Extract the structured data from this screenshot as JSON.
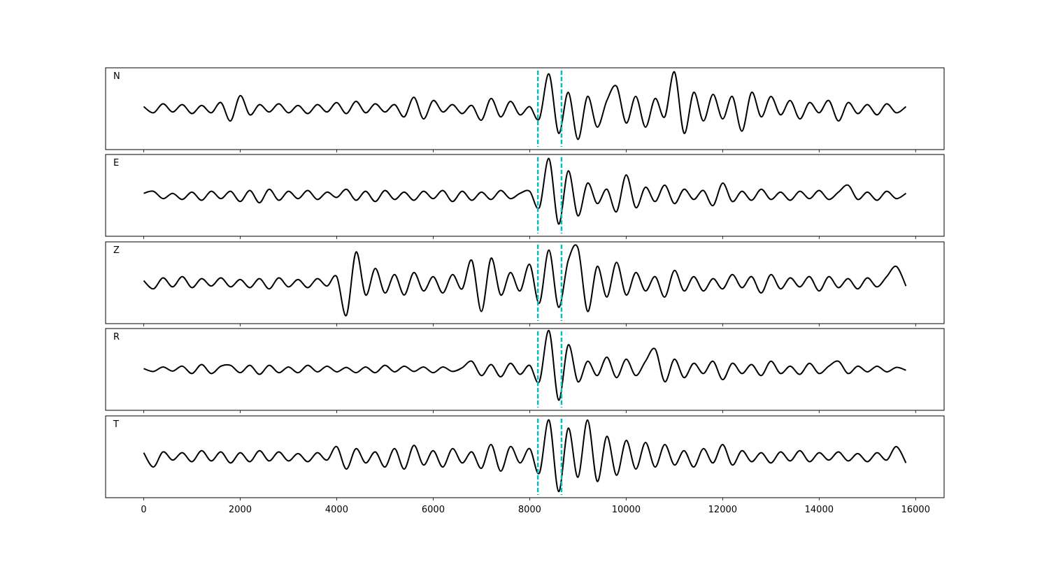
{
  "chart_data": {
    "type": "line",
    "subplots": true,
    "x": [
      0,
      200,
      400,
      600,
      800,
      1000,
      1200,
      1400,
      1600,
      1800,
      2000,
      2200,
      2400,
      2600,
      2800,
      3000,
      3200,
      3400,
      3600,
      3800,
      4000,
      4200,
      4400,
      4600,
      4800,
      5000,
      5200,
      5400,
      5600,
      5800,
      6000,
      6200,
      6400,
      6600,
      6800,
      7000,
      7200,
      7400,
      7600,
      7800,
      8000,
      8200,
      8400,
      8600,
      8800,
      9000,
      9200,
      9400,
      9600,
      9800,
      10000,
      10200,
      10400,
      10600,
      10800,
      11000,
      11200,
      11400,
      11600,
      11800,
      12000,
      12200,
      12400,
      12600,
      12800,
      13000,
      13200,
      13400,
      13600,
      13800,
      14000,
      14200,
      14400,
      14600,
      14800,
      15000,
      15200,
      15400,
      15600,
      15800
    ],
    "series": [
      {
        "name": "N",
        "color": "#000000",
        "values": [
          0.05,
          -0.1,
          0.12,
          -0.08,
          0.1,
          -0.12,
          0.08,
          -0.1,
          0.15,
          -0.3,
          0.32,
          -0.15,
          0.1,
          -0.08,
          0.12,
          -0.1,
          0.08,
          -0.12,
          0.1,
          -0.08,
          0.15,
          -0.12,
          0.18,
          -0.1,
          0.12,
          -0.08,
          0.1,
          -0.2,
          0.28,
          -0.25,
          0.2,
          -0.08,
          0.1,
          -0.12,
          0.08,
          -0.28,
          0.25,
          -0.2,
          0.18,
          -0.15,
          0.05,
          -0.25,
          0.85,
          -0.6,
          0.4,
          -0.75,
          0.3,
          -0.45,
          0.2,
          0.55,
          -0.35,
          0.3,
          -0.45,
          0.25,
          -0.2,
          0.9,
          -0.6,
          0.4,
          -0.3,
          0.35,
          -0.25,
          0.3,
          -0.55,
          0.4,
          -0.2,
          0.3,
          -0.15,
          0.2,
          -0.25,
          0.15,
          -0.1,
          0.2,
          -0.3,
          0.15,
          -0.12,
          0.1,
          -0.15,
          0.12,
          -0.1,
          0.05
        ]
      },
      {
        "name": "E",
        "color": "#000000",
        "values": [
          0.05,
          0.1,
          -0.08,
          0.05,
          -0.1,
          0.08,
          -0.12,
          0.1,
          -0.08,
          0.1,
          -0.15,
          0.12,
          -0.18,
          0.15,
          -0.12,
          0.1,
          -0.08,
          0.12,
          -0.1,
          0.08,
          -0.05,
          0.15,
          -0.12,
          0.1,
          -0.15,
          0.12,
          -0.1,
          0.08,
          -0.12,
          0.1,
          -0.08,
          0.12,
          -0.15,
          0.1,
          -0.12,
          0.08,
          -0.1,
          0.12,
          -0.08,
          0.05,
          0.1,
          -0.3,
          0.9,
          -0.7,
          0.6,
          -0.5,
          0.3,
          -0.2,
          0.15,
          -0.4,
          0.5,
          -0.3,
          0.2,
          -0.15,
          0.25,
          -0.2,
          0.15,
          -0.1,
          0.12,
          -0.25,
          0.3,
          -0.15,
          0.1,
          -0.12,
          0.15,
          -0.1,
          0.08,
          -0.12,
          0.1,
          -0.08,
          0.12,
          -0.1,
          0.08,
          0.25,
          -0.1,
          0.08,
          -0.12,
          0.1,
          -0.08,
          0.05
        ]
      },
      {
        "name": "Z",
        "color": "#000000",
        "values": [
          0.05,
          -0.15,
          0.12,
          -0.1,
          0.15,
          -0.12,
          0.1,
          -0.08,
          0.12,
          -0.1,
          0.08,
          -0.12,
          0.1,
          -0.15,
          0.12,
          -0.1,
          0.08,
          -0.12,
          0.1,
          -0.08,
          0.15,
          -0.8,
          0.75,
          -0.3,
          0.35,
          -0.25,
          0.2,
          -0.3,
          0.25,
          -0.2,
          0.15,
          -0.25,
          0.2,
          -0.15,
          0.55,
          -0.7,
          0.6,
          -0.3,
          0.25,
          -0.2,
          0.45,
          -0.5,
          0.8,
          -0.6,
          0.55,
          0.85,
          -0.7,
          0.4,
          -0.35,
          0.5,
          -0.3,
          0.25,
          -0.2,
          0.15,
          -0.35,
          0.3,
          -0.2,
          0.15,
          -0.2,
          0.1,
          -0.15,
          0.2,
          -0.12,
          0.15,
          -0.25,
          0.2,
          -0.15,
          0.12,
          -0.1,
          0.15,
          -0.2,
          0.15,
          -0.12,
          0.1,
          -0.15,
          0.12,
          -0.1,
          0.15,
          0.4,
          -0.08
        ]
      },
      {
        "name": "R",
        "color": "#000000",
        "values": [
          0.02,
          -0.05,
          0.06,
          -0.04,
          0.08,
          -0.1,
          0.12,
          -0.1,
          0.08,
          0.1,
          -0.08,
          0.1,
          -0.12,
          0.1,
          -0.08,
          0.06,
          -0.08,
          0.1,
          -0.06,
          0.08,
          -0.06,
          0.05,
          -0.08,
          0.06,
          -0.08,
          0.1,
          -0.06,
          0.08,
          -0.05,
          0.06,
          -0.08,
          0.06,
          -0.05,
          0.04,
          0.2,
          -0.15,
          0.12,
          -0.18,
          0.15,
          -0.12,
          0.1,
          -0.3,
          0.95,
          -0.75,
          0.6,
          -0.3,
          0.2,
          -0.15,
          0.3,
          -0.2,
          0.25,
          -0.15,
          0.2,
          0.5,
          -0.3,
          0.25,
          -0.2,
          0.15,
          -0.1,
          0.2,
          -0.25,
          0.15,
          -0.1,
          0.12,
          -0.15,
          0.2,
          -0.1,
          0.08,
          -0.12,
          0.15,
          -0.1,
          0.08,
          0.2,
          -0.1,
          0.08,
          -0.06,
          0.08,
          -0.06,
          0.05,
          -0.02
        ]
      },
      {
        "name": "T",
        "color": "#000000",
        "values": [
          0.1,
          -0.25,
          0.12,
          -0.08,
          0.1,
          -0.12,
          0.15,
          -0.1,
          0.12,
          -0.15,
          0.1,
          -0.12,
          0.15,
          -0.1,
          0.12,
          -0.1,
          0.08,
          -0.12,
          0.1,
          -0.08,
          0.25,
          -0.3,
          0.2,
          -0.15,
          0.12,
          -0.25,
          0.2,
          -0.3,
          0.28,
          -0.2,
          0.15,
          -0.25,
          0.2,
          -0.15,
          0.12,
          -0.28,
          0.3,
          -0.35,
          0.25,
          -0.15,
          0.2,
          -0.4,
          0.9,
          -0.85,
          0.7,
          -0.5,
          0.9,
          -0.6,
          0.5,
          -0.45,
          0.4,
          -0.3,
          0.35,
          -0.25,
          0.3,
          -0.2,
          0.15,
          -0.25,
          0.2,
          -0.15,
          0.3,
          -0.2,
          0.15,
          -0.12,
          0.1,
          -0.15,
          0.12,
          -0.1,
          0.15,
          -0.12,
          0.1,
          -0.08,
          0.12,
          -0.1,
          0.08,
          -0.12,
          0.1,
          -0.08,
          0.25,
          -0.15
        ]
      }
    ],
    "vlines": [
      8170,
      8660
    ],
    "vline_color": "#00bfbf",
    "xlim": [
      -790,
      16590
    ],
    "ylim": [
      -1,
      1
    ],
    "xticks": [
      0,
      2000,
      4000,
      6000,
      8000,
      10000,
      12000,
      14000,
      16000
    ]
  }
}
